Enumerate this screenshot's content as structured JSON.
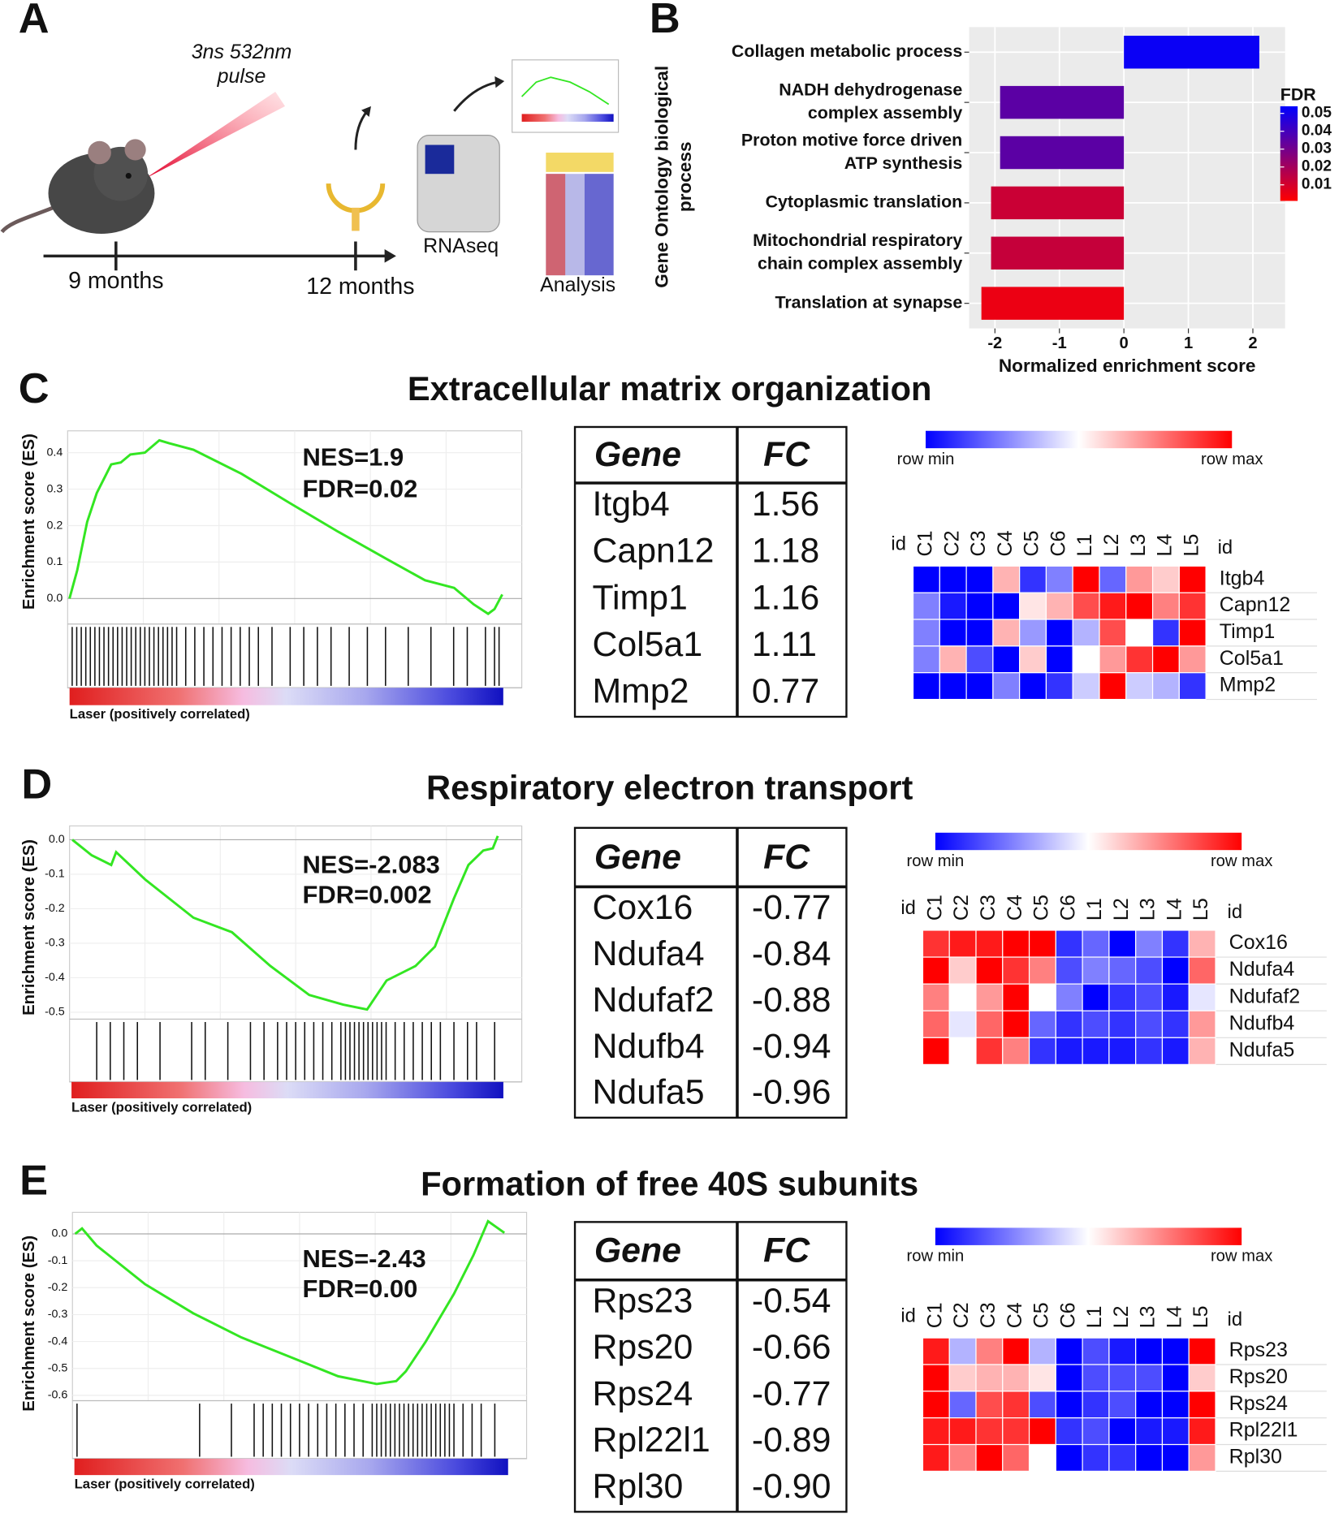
{
  "panel_labels": [
    "A",
    "B",
    "C",
    "D",
    "E"
  ],
  "schematic": {
    "pulse": [
      "3ns 532nm",
      "pulse"
    ],
    "timepoints": [
      "9 months",
      "12 months"
    ],
    "steps": [
      "RNAseq",
      "Analysis"
    ]
  },
  "chart_data": [
    {
      "type": "hbar",
      "categories": [
        [
          "Collagen metabolic process"
        ],
        [
          "NADH dehydrogenase",
          "complex assembly"
        ],
        [
          "Proton motive force driven",
          "ATP synthesis"
        ],
        [
          "Cytoplasmic translation"
        ],
        [
          "Mitochondrial respiratory",
          "chain complex assembly"
        ],
        [
          "Translation at synapse"
        ]
      ],
      "values": [
        2.1,
        -1.92,
        -1.92,
        -2.06,
        -2.06,
        -2.21
      ],
      "fdr": [
        0.052,
        0.035,
        0.035,
        0.012,
        0.013,
        0.005
      ],
      "xlim": [
        -2.4,
        2.5
      ],
      "xticks": [
        -2,
        -1,
        0,
        1,
        2
      ],
      "xlabel": "Normalized enrichment score",
      "ylabel": [
        "Gene Ontology biological",
        "process"
      ],
      "grid": true,
      "colorbar": {
        "title": "FDR",
        "lim": [
          0.001,
          0.054
        ],
        "ticks": [
          0.05,
          0.04,
          0.03,
          0.02,
          0.01
        ],
        "colors": [
          "#ff0000",
          "#0000ff"
        ]
      }
    },
    {
      "type": "gsea",
      "title": "Extracellular matrix organization",
      "ylabel": "Enrichment score (ES)",
      "annotations": [
        "NES=1.9",
        "FDR=0.02"
      ],
      "bar_label": "Laser (positively correlated)",
      "color": "#33e622",
      "xlim": [
        0,
        100
      ],
      "ylim": [
        -0.07,
        0.46
      ],
      "yticks": [
        {
          "value": 0,
          "label": "0.0"
        },
        0.1,
        0.2,
        0.3,
        0.4
      ],
      "x": [
        0.4,
        2.1,
        4.3,
        6.4,
        9.6,
        11.7,
        13.8,
        17,
        20.2,
        22.3,
        27.7,
        38.3,
        48.9,
        59.6,
        70.2,
        78.7,
        85.1,
        89.4,
        92.6,
        94,
        95.7
      ],
      "values": [
        0,
        0.077,
        0.21,
        0.289,
        0.368,
        0.373,
        0.395,
        0.4,
        0.434,
        0.426,
        0.408,
        0.342,
        0.262,
        0.183,
        0.109,
        0.05,
        0.029,
        -0.016,
        -0.042,
        -0.029,
        0.011
      ],
      "hits": [
        1,
        2,
        3,
        4,
        5,
        6,
        7,
        8,
        9,
        10,
        11,
        12,
        13,
        14,
        15,
        16,
        17,
        18,
        19,
        20,
        21,
        22,
        23,
        24,
        26,
        28,
        30,
        32,
        34,
        36,
        38,
        40,
        42,
        45,
        49,
        52,
        55,
        58,
        62,
        66,
        70,
        75,
        80,
        85,
        88,
        92,
        94,
        95
      ]
    },
    {
      "type": "gsea",
      "title": "Respiratory electron transport",
      "ylabel": "Enrichment score (ES)",
      "annotations": [
        "NES=-2.083",
        "FDR=0.002"
      ],
      "bar_label": "Laser (positively correlated)",
      "color": "#33e622",
      "xlim": [
        0,
        100
      ],
      "ylim": [
        -0.52,
        0.04
      ],
      "yticks": [
        {
          "value": 0,
          "label": "0.0"
        },
        -0.1,
        -0.2,
        -0.3,
        -0.4,
        -0.5
      ],
      "x": [
        0.6,
        4.9,
        9.2,
        10.3,
        16.7,
        27.4,
        35.9,
        44.4,
        53,
        60.5,
        65.8,
        70.1,
        76.5,
        80.8,
        85,
        88.2,
        91.5,
        93.6,
        94.7
      ],
      "values": [
        0,
        -0.045,
        -0.073,
        -0.036,
        -0.115,
        -0.226,
        -0.268,
        -0.366,
        -0.45,
        -0.478,
        -0.492,
        -0.408,
        -0.366,
        -0.31,
        -0.17,
        -0.073,
        -0.031,
        -0.025,
        0.011
      ],
      "hits": [
        6,
        9,
        12,
        15,
        20,
        27,
        30,
        35,
        40,
        43,
        46,
        48,
        50,
        52,
        54,
        56,
        58,
        60,
        61,
        62,
        63,
        64,
        65,
        66,
        67,
        68,
        69,
        70,
        72,
        74,
        76,
        78,
        80,
        82,
        85,
        88,
        90,
        94
      ]
    },
    {
      "type": "gsea",
      "title": "Formation of free 40S subunits",
      "ylabel": "Enrichment score (ES)",
      "annotations": [
        "NES=-2.43",
        "FDR=0.00"
      ],
      "bar_label": "Laser (positively correlated)",
      "color": "#33e622",
      "xlim": [
        0,
        100
      ],
      "ylim": [
        -0.62,
        0.08
      ],
      "yticks": [
        {
          "value": 0,
          "label": "0.0"
        },
        -0.1,
        -0.2,
        -0.3,
        -0.4,
        -0.5,
        -0.6
      ],
      "x": [
        0.6,
        2.1,
        5.3,
        16,
        26.6,
        37.2,
        47.9,
        58.5,
        67,
        71.3,
        73.4,
        77.7,
        84,
        88.3,
        91.5,
        93,
        95.1
      ],
      "values": [
        0,
        0.02,
        -0.043,
        -0.187,
        -0.295,
        -0.385,
        -0.457,
        -0.529,
        -0.558,
        -0.547,
        -0.511,
        -0.403,
        -0.223,
        -0.079,
        0.047,
        0.029,
        0.004
      ],
      "hits": [
        1,
        28,
        35,
        40,
        42,
        44,
        46,
        48,
        50,
        52,
        54,
        56,
        58,
        60,
        62,
        64,
        66,
        67,
        68,
        69,
        70,
        71,
        72,
        73,
        74,
        75,
        76,
        77,
        78,
        79,
        80,
        81,
        82,
        83,
        84,
        86,
        88,
        90,
        93
      ]
    }
  ],
  "panels": [
    {
      "table": {
        "header": [
          "Gene",
          "FC"
        ],
        "rows": [
          [
            "Itgb4",
            "1.56"
          ],
          [
            "Capn12",
            "1.18"
          ],
          [
            "Timp1",
            "1.16"
          ],
          [
            "Col5a1",
            "1.11"
          ],
          [
            "Mmp2",
            "0.77"
          ]
        ]
      },
      "heatmap": {
        "legend": [
          "row min",
          "row max"
        ],
        "id_label": "id",
        "vlim": [
          -1,
          1
        ],
        "colors": [
          "#0000ff",
          "#ffffff",
          "#ff0000"
        ],
        "columns": [
          "C1",
          "C2",
          "C3",
          "C4",
          "C5",
          "C6",
          "L1",
          "L2",
          "L3",
          "L4",
          "L5"
        ],
        "rows": [
          "Itgb4",
          "Capn12",
          "Timp1",
          "Col5a1",
          "Mmp2"
        ],
        "values": [
          [
            -1,
            -1,
            -1,
            0.3,
            -0.8,
            -0.5,
            1,
            -0.6,
            0.4,
            0.2,
            1
          ],
          [
            -0.5,
            -0.9,
            -1,
            -1,
            0.1,
            0.3,
            0.7,
            0.9,
            1,
            0.5,
            0.8
          ],
          [
            -0.5,
            -1,
            -1,
            0.3,
            -0.4,
            -1,
            -0.3,
            0.7,
            0,
            -0.8,
            1
          ],
          [
            -0.5,
            0.3,
            -0.7,
            -1,
            0.2,
            -1,
            0,
            0.4,
            0.8,
            1,
            0.4
          ],
          [
            -1,
            -1,
            -1,
            -0.5,
            -1,
            -0.8,
            -0.2,
            1,
            -0.2,
            -0.3,
            -0.8
          ]
        ]
      }
    },
    {
      "table": {
        "header": [
          "Gene",
          "FC"
        ],
        "rows": [
          [
            "Cox16",
            "-0.77"
          ],
          [
            "Ndufa4",
            "-0.84"
          ],
          [
            "Ndufaf2",
            "-0.88"
          ],
          [
            "Ndufb4",
            "-0.94"
          ],
          [
            "Ndufa5",
            "-0.96"
          ]
        ]
      },
      "heatmap": {
        "legend": [
          "row min",
          "row max"
        ],
        "id_label": "id",
        "vlim": [
          -1,
          1
        ],
        "colors": [
          "#0000ff",
          "#ffffff",
          "#ff0000"
        ],
        "columns": [
          "C1",
          "C2",
          "C3",
          "C4",
          "C5",
          "C6",
          "L1",
          "L2",
          "L3",
          "L4",
          "L5"
        ],
        "rows": [
          "Cox16",
          "Ndufa4",
          "Ndufaf2",
          "Ndufb4",
          "Ndufa5"
        ],
        "values": [
          [
            0.8,
            0.9,
            0.9,
            1,
            1,
            -0.8,
            -0.6,
            -1,
            -0.5,
            -0.8,
            0.3
          ],
          [
            1,
            0.2,
            1,
            0.8,
            0.5,
            -0.7,
            -0.5,
            -0.6,
            -0.7,
            -1,
            0.6
          ],
          [
            0.5,
            0,
            0.4,
            1,
            0,
            -0.5,
            -1,
            -0.8,
            -0.7,
            -0.9,
            -0.1
          ],
          [
            0.6,
            -0.1,
            0.6,
            1,
            -0.6,
            -0.8,
            -0.7,
            -0.8,
            -0.7,
            -0.8,
            0.4
          ],
          [
            1,
            0,
            0.8,
            0.5,
            -0.8,
            -0.9,
            -0.9,
            -0.9,
            -0.8,
            -0.9,
            0.3
          ]
        ]
      }
    },
    {
      "table": {
        "header": [
          "Gene",
          "FC"
        ],
        "rows": [
          [
            "Rps23",
            "-0.54"
          ],
          [
            "Rps20",
            "-0.66"
          ],
          [
            "Rps24",
            "-0.77"
          ],
          [
            "Rpl22l1",
            "-0.89"
          ],
          [
            "Rpl30",
            "-0.90"
          ]
        ]
      },
      "heatmap": {
        "legend": [
          "row min",
          "row max"
        ],
        "id_label": "id",
        "vlim": [
          -1,
          1
        ],
        "colors": [
          "#0000ff",
          "#ffffff",
          "#ff0000"
        ],
        "columns": [
          "C1",
          "C2",
          "C3",
          "C4",
          "C5",
          "C6",
          "L1",
          "L2",
          "L3",
          "L4",
          "L5"
        ],
        "rows": [
          "Rps23",
          "Rps20",
          "Rps24",
          "Rpl22l1",
          "Rpl30"
        ],
        "values": [
          [
            0.9,
            -0.3,
            0.5,
            1,
            -0.3,
            -1,
            -0.7,
            -0.9,
            -1,
            -1,
            1
          ],
          [
            1,
            0.2,
            0.3,
            0.3,
            0.1,
            -1,
            -0.7,
            -0.7,
            -0.7,
            -1,
            0.2
          ],
          [
            1,
            -0.6,
            0.7,
            0.8,
            -0.7,
            -1,
            -0.8,
            -0.7,
            -1,
            -1,
            1
          ],
          [
            0.9,
            0.9,
            0.8,
            0.8,
            1,
            -0.8,
            -0.7,
            -1,
            -0.9,
            -0.9,
            0.9
          ],
          [
            0.9,
            0.5,
            1,
            0.6,
            0,
            -1,
            -0.8,
            -0.8,
            -1,
            -1,
            0.4
          ]
        ]
      }
    }
  ]
}
